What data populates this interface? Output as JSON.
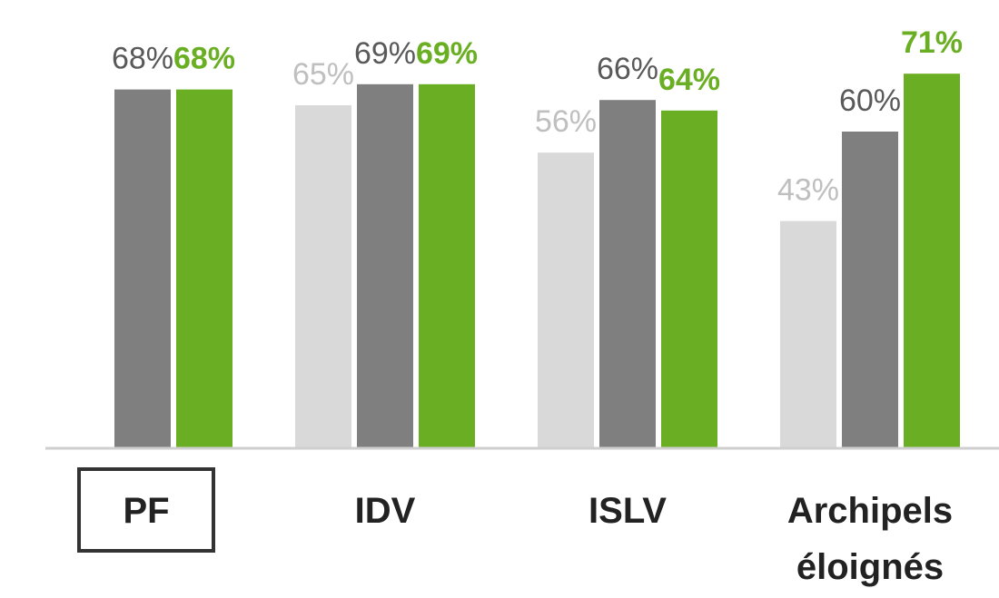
{
  "chart_data": {
    "type": "bar",
    "categories": [
      "PF",
      "IDV",
      "ISLV",
      "Archipels éloignés"
    ],
    "ylim": [
      0,
      85
    ],
    "series": [
      {
        "color": "#d9d9d9",
        "values": [
          null,
          65,
          56,
          43
        ],
        "value_labels": [
          null,
          "65%",
          "56%",
          "43%"
        ]
      },
      {
        "color": "#7f7f7f",
        "values": [
          68,
          69,
          66,
          60
        ],
        "value_labels": [
          "68%",
          "69%",
          "66%",
          "60%"
        ]
      },
      {
        "color": "#6aaf23",
        "values": [
          68,
          69,
          64,
          71
        ],
        "value_labels": [
          "68%",
          "69%",
          "64%",
          "71%"
        ]
      }
    ]
  }
}
